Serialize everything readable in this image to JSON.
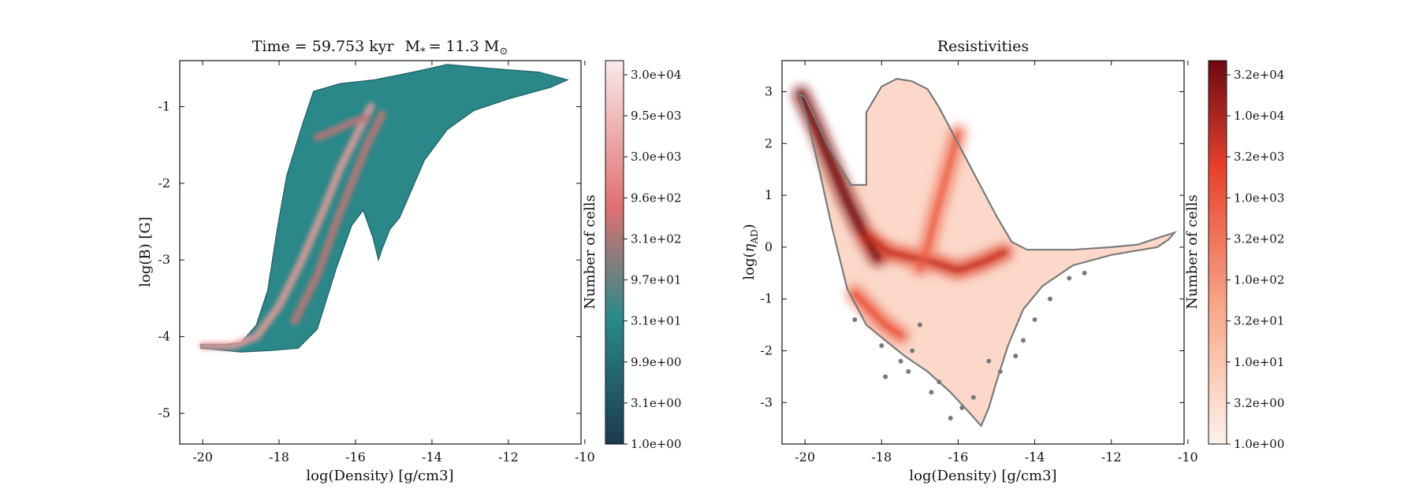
{
  "chart_data": [
    {
      "type": "heatmap",
      "title": "Time = 59.753 kyr    M$_*$ = 11.3 M$_\\odot$",
      "title_parts": {
        "time": "Time = 59.753 kyr",
        "mass": "M",
        "mass_sub": "*",
        "mass_value": "= 11.3 M",
        "mass_unit_sub": "⊙"
      },
      "xlabel": "log(Density) [g/cm3]",
      "ylabel": "log(B) [G]",
      "xlim": [
        -20.6,
        -10.1
      ],
      "ylim": [
        -5.4,
        -0.4
      ],
      "xticks": [
        -20,
        -18,
        -16,
        -14,
        -12,
        -10
      ],
      "xtick_labels": [
        "-20",
        "-18",
        "-16",
        "-14",
        "-12",
        "-10"
      ],
      "yticks": [
        -5,
        -4,
        -3,
        -2,
        -1
      ],
      "ytick_labels": [
        "-5",
        "-4",
        "-3",
        "-2",
        "-1"
      ],
      "colormap": [
        "#1b3a4d",
        "#2a8a8a",
        "#e07070",
        "#fbe9ea"
      ],
      "colorbar": {
        "label": "Number of cells",
        "scale": "log",
        "ticks": [
          "1.0e+00",
          "3.1e+00",
          "9.9e+00",
          "3.1e+01",
          "9.7e+01",
          "3.1e+02",
          "9.6e+02",
          "3.0e+03",
          "9.5e+03",
          "3.0e+04"
        ]
      },
      "region_outline": [
        [
          -20.05,
          -4.1
        ],
        [
          -19.4,
          -4.1
        ],
        [
          -19.0,
          -4.08
        ],
        [
          -18.6,
          -3.85
        ],
        [
          -18.3,
          -3.4
        ],
        [
          -18.05,
          -2.6
        ],
        [
          -17.8,
          -1.9
        ],
        [
          -17.4,
          -1.25
        ],
        [
          -17.1,
          -0.8
        ],
        [
          -16.4,
          -0.7
        ],
        [
          -15.5,
          -0.65
        ],
        [
          -14.5,
          -0.55
        ],
        [
          -13.6,
          -0.45
        ],
        [
          -12.5,
          -0.5
        ],
        [
          -11.2,
          -0.55
        ],
        [
          -10.45,
          -0.65
        ],
        [
          -10.9,
          -0.75
        ],
        [
          -12.0,
          -0.9
        ],
        [
          -12.9,
          -1.05
        ],
        [
          -13.6,
          -1.3
        ],
        [
          -14.2,
          -1.7
        ],
        [
          -14.5,
          -2.05
        ],
        [
          -14.85,
          -2.45
        ],
        [
          -15.1,
          -2.6
        ],
        [
          -15.3,
          -2.85
        ],
        [
          -15.4,
          -3.0
        ],
        [
          -15.55,
          -2.7
        ],
        [
          -15.8,
          -2.35
        ],
        [
          -16.1,
          -2.55
        ],
        [
          -16.5,
          -3.1
        ],
        [
          -17.0,
          -3.9
        ],
        [
          -17.5,
          -4.15
        ],
        [
          -18.2,
          -4.18
        ],
        [
          -19.0,
          -4.2
        ],
        [
          -20.05,
          -4.15
        ]
      ],
      "ridges": [
        {
          "points": [
            [
              -20.0,
              -4.12
            ],
            [
              -19.2,
              -4.12
            ],
            [
              -18.6,
              -4.0
            ],
            [
              -18.0,
              -3.6
            ],
            [
              -17.4,
              -3.0
            ],
            [
              -16.8,
              -2.3
            ],
            [
              -16.4,
              -1.8
            ],
            [
              -16.0,
              -1.4
            ],
            [
              -15.6,
              -1.0
            ]
          ],
          "intensity": 0.78
        },
        {
          "points": [
            [
              -17.6,
              -3.8
            ],
            [
              -17.0,
              -3.2
            ],
            [
              -16.5,
              -2.5
            ],
            [
              -16.1,
              -2.0
            ],
            [
              -15.7,
              -1.5
            ],
            [
              -15.3,
              -1.1
            ]
          ],
          "intensity": 0.62
        },
        {
          "points": [
            [
              -17.0,
              -1.4
            ],
            [
              -16.5,
              -1.3
            ],
            [
              -16.1,
              -1.2
            ],
            [
              -15.7,
              -1.15
            ]
          ],
          "intensity": 0.6
        }
      ]
    },
    {
      "type": "heatmap",
      "title": "Resistivities",
      "xlabel": "log(Density) [g/cm3]",
      "ylabel": "log(η_AD)",
      "ylabel_parts": {
        "main": "log(",
        "symbol": "η",
        "sub": "AD",
        "close": ")"
      },
      "xlim": [
        -20.6,
        -10.1
      ],
      "ylim": [
        -3.8,
        3.6
      ],
      "xticks": [
        -20,
        -18,
        -16,
        -14,
        -12,
        -10
      ],
      "xtick_labels": [
        "-20",
        "-18",
        "-16",
        "-14",
        "-12",
        "-10"
      ],
      "yticks": [
        -3,
        -2,
        -1,
        0,
        1,
        2,
        3
      ],
      "ytick_labels": [
        "-3",
        "-2",
        "-1",
        "0",
        "1",
        "2",
        "3"
      ],
      "colormap": [
        "#fdf1ea",
        "#f8a98a",
        "#e8412c",
        "#6b0a12"
      ],
      "colorbar": {
        "label": "Number of cells",
        "scale": "log",
        "ticks": [
          "1.0e+00",
          "3.2e+00",
          "1.0e+01",
          "3.2e+01",
          "1.0e+02",
          "3.2e+02",
          "1.0e+03",
          "3.2e+03",
          "1.0e+04",
          "3.2e+04"
        ]
      },
      "outline_color": "#7a7a7a",
      "region_outline": [
        [
          -20.15,
          2.95
        ],
        [
          -20.0,
          2.9
        ],
        [
          -19.4,
          1.95
        ],
        [
          -18.8,
          1.2
        ],
        [
          -18.4,
          1.2
        ],
        [
          -18.4,
          2.6
        ],
        [
          -18.0,
          3.1
        ],
        [
          -17.6,
          3.25
        ],
        [
          -17.2,
          3.2
        ],
        [
          -16.8,
          3.05
        ],
        [
          -16.5,
          2.7
        ],
        [
          -16.0,
          2.0
        ],
        [
          -15.5,
          1.3
        ],
        [
          -15.0,
          0.6
        ],
        [
          -14.6,
          0.1
        ],
        [
          -14.2,
          -0.05
        ],
        [
          -13.0,
          -0.05
        ],
        [
          -12.0,
          0.0
        ],
        [
          -11.3,
          0.05
        ],
        [
          -10.7,
          0.2
        ],
        [
          -10.35,
          0.28
        ],
        [
          -10.5,
          0.15
        ],
        [
          -10.8,
          0.0
        ],
        [
          -11.2,
          -0.05
        ],
        [
          -12.0,
          -0.15
        ],
        [
          -13.0,
          -0.35
        ],
        [
          -13.8,
          -0.75
        ],
        [
          -14.3,
          -1.2
        ],
        [
          -14.7,
          -1.9
        ],
        [
          -15.0,
          -2.6
        ],
        [
          -15.2,
          -3.1
        ],
        [
          -15.4,
          -3.45
        ],
        [
          -15.7,
          -3.2
        ],
        [
          -16.2,
          -2.8
        ],
        [
          -16.8,
          -2.4
        ],
        [
          -17.4,
          -2.1
        ],
        [
          -17.9,
          -1.8
        ],
        [
          -18.4,
          -1.5
        ],
        [
          -18.9,
          -0.8
        ],
        [
          -19.3,
          0.4
        ],
        [
          -19.6,
          1.4
        ],
        [
          -19.95,
          2.5
        ],
        [
          -20.15,
          2.95
        ]
      ],
      "ridges": [
        {
          "points": [
            [
              -20.1,
              2.95
            ],
            [
              -19.7,
              2.3
            ],
            [
              -19.3,
              1.6
            ],
            [
              -18.9,
              0.9
            ],
            [
              -18.5,
              0.3
            ],
            [
              -18.1,
              -0.2
            ]
          ],
          "intensity": 0.95
        },
        {
          "points": [
            [
              -18.4,
              0.2
            ],
            [
              -17.8,
              -0.1
            ],
            [
              -17.2,
              -0.2
            ],
            [
              -16.6,
              -0.3
            ],
            [
              -16.0,
              -0.45
            ],
            [
              -15.4,
              -0.3
            ],
            [
              -14.8,
              -0.1
            ]
          ],
          "intensity": 0.7
        },
        {
          "points": [
            [
              -16.0,
              2.2
            ],
            [
              -16.3,
              1.4
            ],
            [
              -16.6,
              0.6
            ],
            [
              -16.8,
              0.0
            ],
            [
              -17.0,
              -0.4
            ]
          ],
          "intensity": 0.5
        },
        {
          "points": [
            [
              -18.7,
              -0.9
            ],
            [
              -18.3,
              -1.2
            ],
            [
              -17.9,
              -1.5
            ],
            [
              -17.5,
              -1.7
            ]
          ],
          "intensity": 0.55
        }
      ],
      "outlier_points": [
        [
          -17.2,
          -2.0
        ],
        [
          -17.5,
          -2.2
        ],
        [
          -18.0,
          -1.9
        ],
        [
          -17.0,
          -1.5
        ],
        [
          -16.7,
          -2.8
        ],
        [
          -16.5,
          -2.6
        ],
        [
          -15.9,
          -3.1
        ],
        [
          -15.6,
          -2.9
        ],
        [
          -14.9,
          -2.4
        ],
        [
          -14.5,
          -2.1
        ],
        [
          -14.0,
          -1.4
        ],
        [
          -13.6,
          -1.0
        ],
        [
          -13.1,
          -0.6
        ],
        [
          -12.7,
          -0.5
        ],
        [
          -18.7,
          -1.4
        ],
        [
          -17.9,
          -2.5
        ],
        [
          -17.3,
          -2.4
        ],
        [
          -16.2,
          -3.3
        ],
        [
          -15.2,
          -2.2
        ],
        [
          -14.3,
          -1.8
        ]
      ]
    }
  ]
}
